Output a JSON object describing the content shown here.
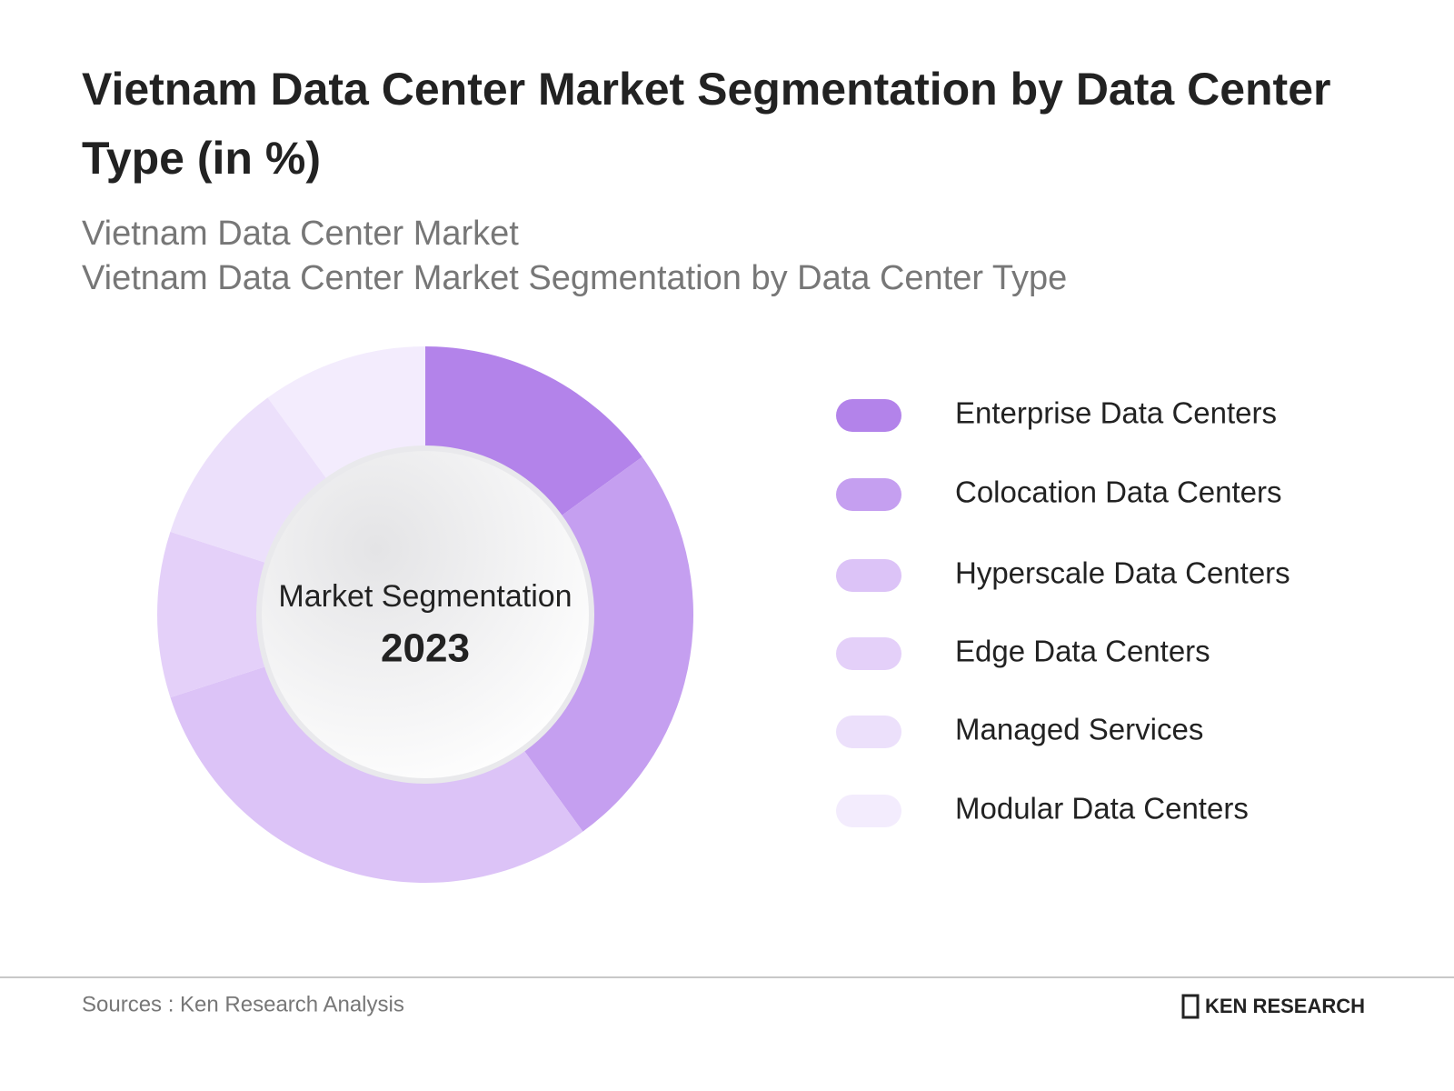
{
  "chart_data": {
    "type": "donut",
    "title": "Vietnam Data Center Market Segmentation by Data Center Type (in %)",
    "subtitle": [
      "Vietnam Data Center Market",
      "Vietnam Data Center Market Segmentation by Data Center Type"
    ],
    "center_title": "Market Segmentation",
    "center_year": "2023",
    "categories": [
      "Enterprise Data Centers",
      "Colocation Data Centers",
      "Hyperscale Data Centers",
      "Edge Data Centers",
      "Managed Services",
      "Modular Data Centers"
    ],
    "values": [
      15,
      25,
      30,
      10,
      10,
      10
    ],
    "colors": [
      "#b383ea",
      "#c59ff0",
      "#dcc3f7",
      "#e4d0f9",
      "#ece0fb",
      "#f3ecfd"
    ],
    "legend": "right"
  },
  "footer": {
    "source": "Sources : Ken Research Analysis",
    "logo": "KEN RESEARCH"
  }
}
